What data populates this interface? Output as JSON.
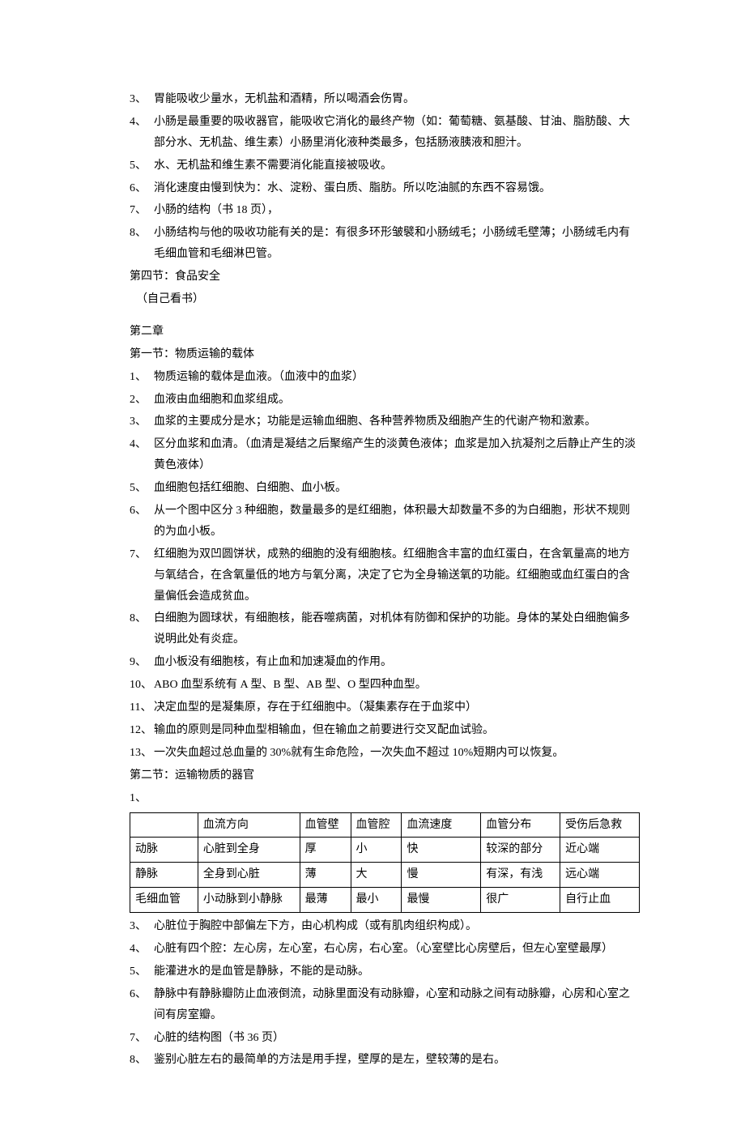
{
  "ch1": {
    "items": [
      {
        "n": "3、",
        "t": "胃能吸收少量水，无机盐和酒精，所以喝酒会伤胃。"
      },
      {
        "n": "4、",
        "t": "小肠是最重要的吸收器官，能吸收它消化的最终产物（如：葡萄糖、氨基酸、甘油、脂肪酸、大部分水、无机盐、维生素）小肠里消化液种类最多，包括肠液胰液和胆汁。"
      },
      {
        "n": "5、",
        "t": "水、无机盐和维生素不需要消化能直接被吸收。"
      },
      {
        "n": "6、",
        "t": "消化速度由慢到快为：水、淀粉、蛋白质、脂肪。所以吃油腻的东西不容易饿。"
      },
      {
        "n": "7、",
        "t": "小肠的结构（书 18 页），"
      },
      {
        "n": "8、",
        "t": "小肠结构与他的吸收功能有关的是：有很多环形皱襞和小肠绒毛；小肠绒毛壁薄；小肠绒毛内有毛细血管和毛细淋巴管。"
      }
    ],
    "sec4_title": "第四节：食品安全",
    "sec4_note": "（自己看书）"
  },
  "ch2": {
    "chapter": "第二章",
    "sec1_title": "第一节：物质运输的载体",
    "sec1_items": [
      {
        "n": "1、",
        "t": "物质运输的载体是血液。（血液中的血浆）"
      },
      {
        "n": "2、",
        "t": "血液由血细胞和血浆组成。"
      },
      {
        "n": "3、",
        "t": "血浆的主要成分是水；功能是运输血细胞、各种营养物质及细胞产生的代谢产物和激素。"
      },
      {
        "n": "4、",
        "t": "区分血浆和血清。（血清是凝结之后聚缩产生的淡黄色液体；血浆是加入抗凝剂之后静止产生的淡黄色液体）"
      },
      {
        "n": "5、",
        "t": "血细胞包括红细胞、白细胞、血小板。"
      },
      {
        "n": "6、",
        "t": "从一个图中区分 3 种细胞，数量最多的是红细胞，体积最大却数量不多的为白细胞，形状不规则的为血小板。"
      },
      {
        "n": "7、",
        "t": "红细胞为双凹圆饼状，成熟的细胞的没有细胞核。红细胞含丰富的血红蛋白，在含氧量高的地方与氧结合，在含氧量低的地方与氧分离，决定了它为全身输送氧的功能。红细胞或血红蛋白的含量偏低会造成贫血。"
      },
      {
        "n": "8、",
        "t": "白细胞为圆球状，有细胞核，能吞噬病菌，对机体有防御和保护的功能。身体的某处白细胞偏多说明此处有炎症。"
      },
      {
        "n": "9、",
        "t": "血小板没有细胞核，有止血和加速凝血的作用。"
      },
      {
        "n": "10、",
        "t": "ABO 血型系统有 A 型、B 型、AB 型、O 型四种血型。"
      },
      {
        "n": "11、",
        "t": "决定血型的是凝集原，存在于红细胞中。（凝集素存在于血浆中）"
      },
      {
        "n": "12、",
        "t": "输血的原则是同种血型相输血，但在输血之前要进行交叉配血试验。"
      },
      {
        "n": "13、",
        "t": "一次失血超过总血量的 30%就有生命危险，一次失血不超过 10%短期内可以恢复。"
      }
    ],
    "sec2_title": "第二节：运输物质的器官",
    "sec2_lead": "1、",
    "table": {
      "columns": [
        "",
        "血流方向",
        "血管壁",
        "血管腔",
        "血流速度",
        "血管分布",
        "受伤后急救"
      ],
      "rows": [
        [
          "动脉",
          "心脏到全身",
          "厚",
          "小",
          "快",
          "较深的部分",
          "近心端"
        ],
        [
          "静脉",
          "全身到心脏",
          "薄",
          "大",
          "慢",
          "有深，有浅",
          "远心端"
        ],
        [
          "毛细血管",
          "小动脉到小静脉",
          "最薄",
          "最小",
          "最慢",
          "很广",
          "自行止血"
        ]
      ]
    },
    "sec2_items": [
      {
        "n": "3、",
        "t": "心脏位于胸腔中部偏左下方，由心机构成（或有肌肉组织构成）。"
      },
      {
        "n": "4、",
        "t": "心脏有四个腔：左心房，左心室，右心房，右心室。（心室壁比心房壁后，但左心室壁最厚）"
      },
      {
        "n": "5、",
        "t": "能灌进水的是血管是静脉，不能的是动脉。"
      },
      {
        "n": "6、",
        "t": "静脉中有静脉瓣防止血液倒流，动脉里面没有动脉瓣，心室和动脉之间有动脉瓣，心房和心室之间有房室瓣。"
      },
      {
        "n": "7、",
        "t": "心脏的结构图（书 36 页）"
      },
      {
        "n": "8、",
        "t": "鉴别心脏左右的最简单的方法是用手捏，壁厚的是左，壁较薄的是右。"
      }
    ]
  }
}
